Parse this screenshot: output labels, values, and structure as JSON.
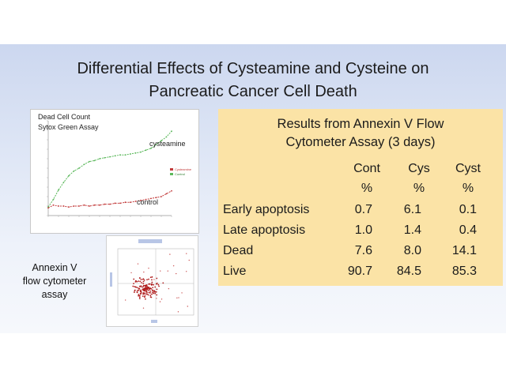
{
  "slide": {
    "title_line1": "Differential Effects of Cysteamine and Cysteine on",
    "title_line2": "Pancreatic Cancer Cell Death"
  },
  "line_chart": {
    "title_line1": "Dead Cell Count",
    "title_line2": "Sytox Green Assay",
    "label_cysteamine": "cysteamine",
    "label_control": "control",
    "legend": [
      "Cysteamine",
      "Control"
    ],
    "series_color_cysteamine": "#5bb85b",
    "series_color_control": "#c23b3b"
  },
  "chart_data": {
    "type": "line",
    "title": "Dead Cell Count — Sytox Green Assay",
    "x": [
      0,
      1,
      2,
      3,
      4,
      5,
      6,
      7,
      8,
      9,
      10,
      11,
      12,
      13,
      14,
      15,
      16,
      17,
      18,
      19,
      20,
      21,
      22,
      23,
      24
    ],
    "series": [
      {
        "name": "cysteamine",
        "values": [
          9,
          17,
          27,
          35,
          42,
          47,
          50,
          54,
          57,
          58,
          60,
          61,
          62,
          63,
          64,
          64,
          65,
          66,
          67,
          69,
          71,
          75,
          79,
          83,
          89
        ]
      },
      {
        "name": "control",
        "values": [
          8,
          11,
          10,
          10,
          9,
          10,
          10,
          11,
          10,
          11,
          11,
          12,
          12,
          13,
          13,
          14,
          14,
          15,
          16,
          17,
          18,
          19,
          20,
          23,
          26
        ]
      }
    ],
    "ylim": [
      0,
      100
    ]
  },
  "flow_cytometer": {
    "label_line1": "Annexin V",
    "label_line2": "flow cytometer",
    "label_line3": "assay"
  },
  "results": {
    "title_line1": "Results from Annexin V Flow",
    "title_line2": "Cytometer Assay (3 days)",
    "columns": [
      {
        "name": "Cont",
        "unit": "%"
      },
      {
        "name": "Cys",
        "unit": "%"
      },
      {
        "name": "Cyst",
        "unit": "%"
      }
    ],
    "rows": [
      {
        "label": "Early apoptosis",
        "values": [
          "0.7",
          "6.1",
          "0.1"
        ]
      },
      {
        "label": "Late apoptosis",
        "values": [
          "1.0",
          "1.4",
          "0.4"
        ]
      },
      {
        "label": "Dead",
        "values": [
          "7.6",
          "8.0",
          "14.1"
        ]
      },
      {
        "label": "Live",
        "values": [
          "90.7",
          "84.5",
          "85.3"
        ]
      }
    ]
  }
}
